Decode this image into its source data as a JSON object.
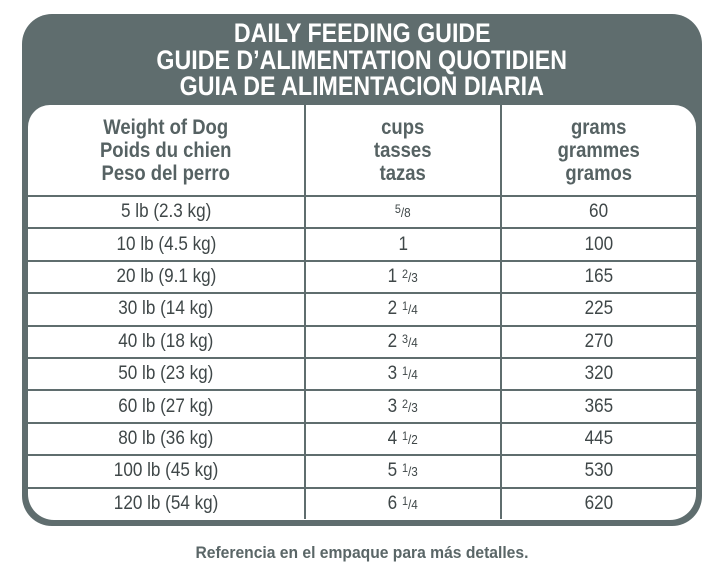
{
  "title": {
    "line1": "DAILY FEEDING GUIDE",
    "line2": "GUIDE D’ALIMENTATION QUOTIDIEN",
    "line3": "GUIA DE ALIMENTACION DIARIA"
  },
  "headers": [
    [
      "Weight of Dog",
      "Poids du chien",
      "Peso del perro"
    ],
    [
      "cups",
      "tasses",
      "tazas"
    ],
    [
      "grams",
      "grammes",
      "gramos"
    ]
  ],
  "rows": [
    {
      "weight": "5 lb (2.3 kg)",
      "cups_whole": "",
      "cups_frac_num": "5",
      "cups_frac_den": "8",
      "grams": "60"
    },
    {
      "weight": "10 lb (4.5 kg)",
      "cups_whole": "1",
      "cups_frac_num": "",
      "cups_frac_den": "",
      "grams": "100"
    },
    {
      "weight": "20 lb (9.1 kg)",
      "cups_whole": "1",
      "cups_frac_num": "2",
      "cups_frac_den": "3",
      "grams": "165"
    },
    {
      "weight": "30 lb (14 kg)",
      "cups_whole": "2",
      "cups_frac_num": "1",
      "cups_frac_den": "4",
      "grams": "225"
    },
    {
      "weight": "40 lb (18 kg)",
      "cups_whole": "2",
      "cups_frac_num": "3",
      "cups_frac_den": "4",
      "grams": "270"
    },
    {
      "weight": "50 lb (23 kg)",
      "cups_whole": "3",
      "cups_frac_num": "1",
      "cups_frac_den": "4",
      "grams": "320"
    },
    {
      "weight": "60 lb (27 kg)",
      "cups_whole": "3",
      "cups_frac_num": "2",
      "cups_frac_den": "3",
      "grams": "365"
    },
    {
      "weight": "80 lb (36 kg)",
      "cups_whole": "4",
      "cups_frac_num": "1",
      "cups_frac_den": "2",
      "grams": "445"
    },
    {
      "weight": "100 lb (45 kg)",
      "cups_whole": "5",
      "cups_frac_num": "1",
      "cups_frac_den": "3",
      "grams": "530"
    },
    {
      "weight": "120 lb (54 kg)",
      "cups_whole": "6",
      "cups_frac_num": "1",
      "cups_frac_den": "4",
      "grams": "620"
    }
  ],
  "footer": "Referencia en el empaque para más detalles.",
  "colors": {
    "frame": "#5f6d6e",
    "text": "#3f4748"
  }
}
